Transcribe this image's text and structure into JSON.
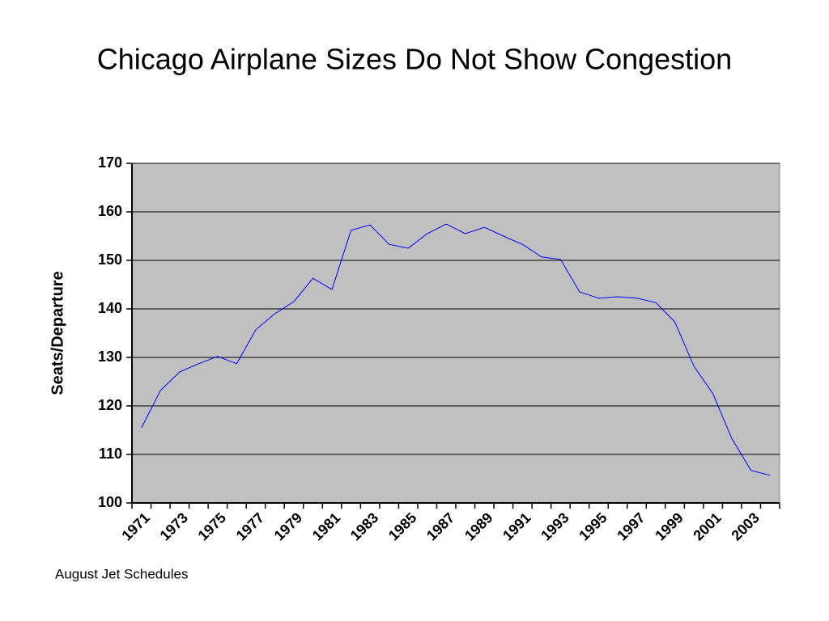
{
  "chart_data": {
    "type": "line",
    "title": "Chicago Airplane Sizes Do Not Show Congestion",
    "y_label": "Seats/Departure",
    "note": "August Jet Schedules",
    "categories": [
      "1971",
      null,
      "1973",
      null,
      "1975",
      null,
      "1977",
      null,
      "1979",
      null,
      "1981",
      null,
      "1983",
      null,
      "1985",
      null,
      "1987",
      null,
      "1989",
      null,
      "1991",
      null,
      "1993",
      null,
      "1995",
      null,
      "1997",
      null,
      "1999",
      null,
      "2001",
      null,
      "2003",
      null
    ],
    "series": [
      {
        "name": "Seats/Departure",
        "color": "#0000ff",
        "values": [
          115.5,
          123.2,
          127,
          128.7,
          130.2,
          128.7,
          135.7,
          139,
          141.5,
          146.3,
          144,
          156.2,
          157.3,
          153.3,
          152.5,
          155.5,
          157.5,
          155.5,
          156.8,
          155,
          153.3,
          150.7,
          150.2,
          143.5,
          142.2,
          142.5,
          142.2,
          141.3,
          137.3,
          128.2,
          122.5,
          113.2,
          106.7,
          105.7
        ]
      }
    ],
    "ylim": [
      100,
      170
    ],
    "yticks": [
      100,
      110,
      120,
      130,
      140,
      150,
      160,
      170
    ],
    "grid": true,
    "plot_background": "#c0c0c0"
  }
}
